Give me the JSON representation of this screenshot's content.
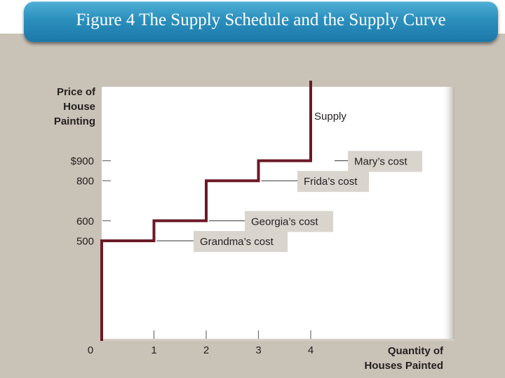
{
  "slide": {
    "title": "Figure 4 The Supply Schedule and the Supply Curve"
  },
  "chart_data": {
    "type": "line",
    "ylabel_lines": [
      "Price of",
      "House",
      "Painting"
    ],
    "xlabel_lines": [
      "Quantity of",
      "Houses Painted"
    ],
    "x_ticks": [
      "0",
      "1",
      "2",
      "3",
      "4"
    ],
    "y_ticks": [
      {
        "value": 900,
        "label": "$900"
      },
      {
        "value": 800,
        "label": "800"
      },
      {
        "value": 600,
        "label": "600"
      },
      {
        "value": 500,
        "label": "500"
      }
    ],
    "series": [
      {
        "name": "Supply",
        "color": "#6b1a26",
        "points": [
          {
            "x": 0,
            "y": 0
          },
          {
            "x": 0,
            "y": 500
          },
          {
            "x": 1,
            "y": 500
          },
          {
            "x": 1,
            "y": 600
          },
          {
            "x": 2,
            "y": 600
          },
          {
            "x": 2,
            "y": 800
          },
          {
            "x": 3,
            "y": 800
          },
          {
            "x": 3,
            "y": 900
          },
          {
            "x": 4,
            "y": 900
          },
          {
            "x": 4,
            "y": 1300
          }
        ]
      }
    ],
    "annotations": [
      {
        "text": "Mary’s cost",
        "x": 4,
        "y": 900
      },
      {
        "text": "Frida’s cost",
        "x": 3,
        "y": 800
      },
      {
        "text": "Georgia’s cost",
        "x": 2,
        "y": 600
      },
      {
        "text": "Grandma’s cost",
        "x": 1,
        "y": 500
      }
    ],
    "xlim": [
      0,
      6.5
    ],
    "ylim": [
      0,
      1300
    ],
    "grid": false,
    "colors": {
      "plot_background": "#ffffff",
      "label_box": "#d9d4cd",
      "axis_text": "#231f20"
    }
  }
}
